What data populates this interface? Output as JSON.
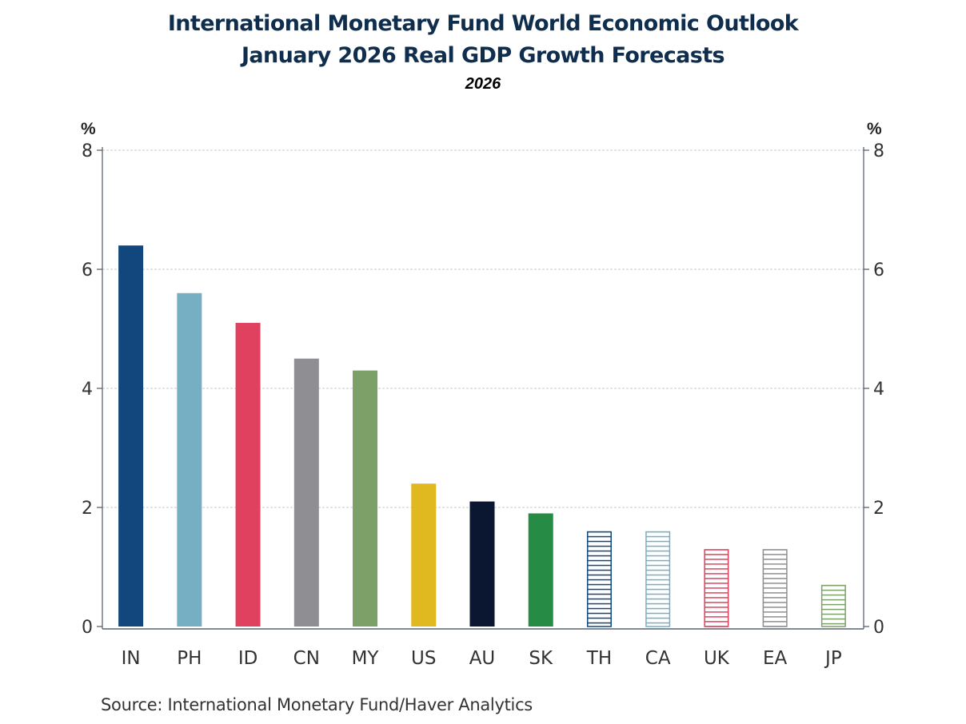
{
  "chart_data": {
    "type": "bar",
    "title": "International Monetary Fund World Economic Outlook",
    "subtitle": "January 2026 Real GDP Growth Forecasts",
    "subsubtitle": "2026",
    "xlabel": "",
    "ylabel": "%",
    "ylabel_right": "%",
    "ylim": [
      0,
      8
    ],
    "yticks": [
      0,
      2,
      4,
      6,
      8
    ],
    "grid": true,
    "categories": [
      "IN",
      "PH",
      "ID",
      "CN",
      "MY",
      "US",
      "AU",
      "SK",
      "TH",
      "CA",
      "UK",
      "EA",
      "JP"
    ],
    "values": [
      6.4,
      5.6,
      5.1,
      4.5,
      4.3,
      2.4,
      2.1,
      1.9,
      1.6,
      1.6,
      1.3,
      1.3,
      0.7
    ],
    "colors": [
      "#11477c",
      "#76afc4",
      "#df415e",
      "#8e8e93",
      "#7da068",
      "#e0b820",
      "#0b1730",
      "#268b45",
      "#11477c",
      "#76afc4",
      "#df415e",
      "#8e8e93",
      "#7da068"
    ],
    "hatched": [
      false,
      false,
      false,
      false,
      false,
      false,
      false,
      false,
      true,
      true,
      true,
      true,
      true
    ],
    "source": "Source:  International Monetary Fund/Haver Analytics"
  }
}
